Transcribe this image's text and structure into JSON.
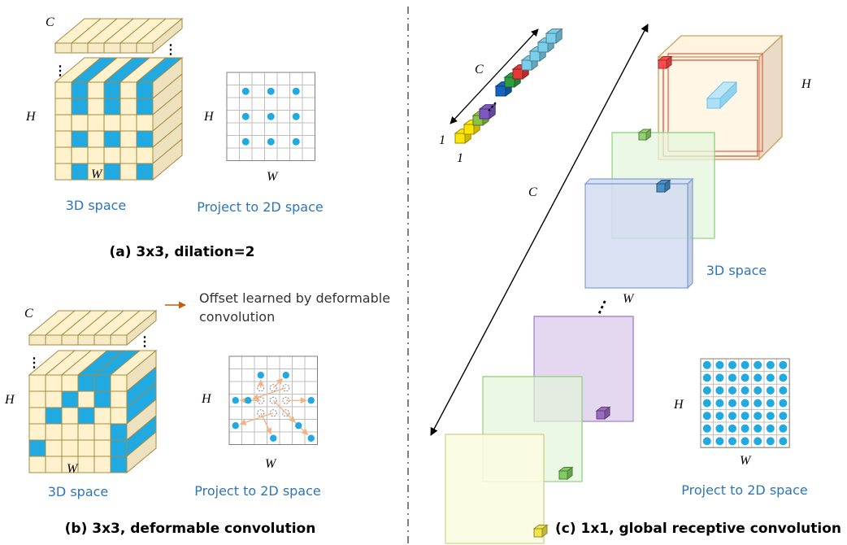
{
  "panel_a": {
    "dim_c": "C",
    "dim_h": "H",
    "dim_w": "W",
    "proj_h": "H",
    "proj_w": "W",
    "space3d_label": "3D space",
    "proj_label": "Project to 2D space",
    "caption": "(a) 3x3, dilation=2"
  },
  "panel_b": {
    "dim_c": "C",
    "dim_h": "H",
    "dim_w": "W",
    "proj_h": "H",
    "proj_w": "W",
    "legend_text_1": "Offset learned by deformable",
    "legend_text_2": "convolution",
    "space3d_label": "3D space",
    "proj_label": "Project to 2D space",
    "caption": "(b) 3x3, deformable convolution"
  },
  "panel_c": {
    "dim_c_vec": "C",
    "dim_one_a": "1",
    "dim_one_b": "1",
    "dim_c_depth": "C",
    "dim_h": "H",
    "dim_w": "W",
    "proj_h": "H",
    "proj_w": "W",
    "space3d_label": "3D space",
    "proj_label": "Project to 2D space",
    "caption": "(c) 1x1, global receptive convolution"
  },
  "colors": {
    "cell_fill": "#fff2cc",
    "cell_stroke": "#a58a42",
    "kernel_blue": "#21a9e1",
    "label_blue": "#2e75b6",
    "offset_arrow": "#f4b183"
  }
}
